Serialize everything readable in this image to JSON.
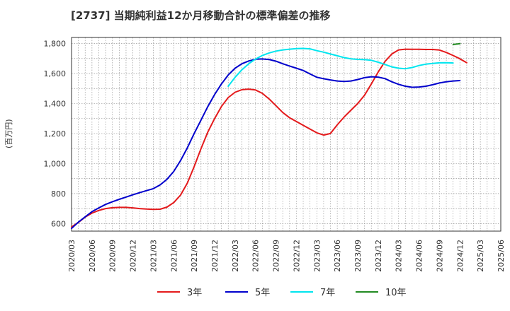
{
  "chart_data": {
    "type": "line",
    "title": "[2737]  当期純利益12か月移動合計の標準偏差の推移",
    "ylabel": "(百万円)",
    "xlabel": "",
    "ylim": [
      550,
      1840
    ],
    "yticks": [
      600,
      800,
      1000,
      1200,
      1400,
      1600,
      1800
    ],
    "ytick_labels": [
      "600",
      "800",
      "1,000",
      "1,200",
      "1,400",
      "1,600",
      "1,800"
    ],
    "xticks": [
      "2020/03",
      "2020/06",
      "2020/09",
      "2020/12",
      "2021/03",
      "2021/06",
      "2021/09",
      "2021/12",
      "2022/03",
      "2022/06",
      "2022/09",
      "2022/12",
      "2023/03",
      "2023/06",
      "2023/09",
      "2023/12",
      "2024/03",
      "2024/06",
      "2024/09",
      "2024/12",
      "2025/03",
      "2025/06"
    ],
    "x_start": "2020/03",
    "grid": true,
    "legend_position": "bottom",
    "series": [
      {
        "name": "3年",
        "color": "#e41a1c",
        "values": [
          578,
          608,
          643,
          670,
          688,
          700,
          706,
          708,
          708,
          705,
          700,
          697,
          695,
          696,
          710,
          740,
          790,
          870,
          980,
          1100,
          1210,
          1300,
          1380,
          1440,
          1475,
          1492,
          1496,
          1490,
          1468,
          1430,
          1385,
          1340,
          1305,
          1280,
          1255,
          1230,
          1205,
          1190,
          1200,
          1258,
          1310,
          1355,
          1400,
          1455,
          1530,
          1610,
          1680,
          1730,
          1757,
          1762,
          1761,
          1761,
          1760,
          1760,
          1756,
          1740,
          1720,
          1698,
          1672
        ]
      },
      {
        "name": "5年",
        "color": "#0000cc",
        "values": [
          568,
          610,
          645,
          680,
          705,
          728,
          746,
          762,
          777,
          792,
          806,
          820,
          833,
          858,
          895,
          948,
          1020,
          1105,
          1200,
          1290,
          1380,
          1460,
          1530,
          1590,
          1635,
          1665,
          1683,
          1695,
          1697,
          1693,
          1682,
          1665,
          1650,
          1635,
          1620,
          1597,
          1575,
          1565,
          1557,
          1550,
          1547,
          1550,
          1560,
          1572,
          1578,
          1576,
          1566,
          1545,
          1528,
          1515,
          1508,
          1510,
          1515,
          1525,
          1537,
          1545,
          1550,
          1553
        ]
      },
      {
        "name": "7年",
        "color": "#00e5ee",
        "values": [
          null,
          null,
          null,
          null,
          null,
          null,
          null,
          null,
          null,
          null,
          null,
          null,
          null,
          null,
          null,
          null,
          null,
          null,
          null,
          null,
          null,
          null,
          null,
          1515,
          1575,
          1625,
          1665,
          1696,
          1720,
          1737,
          1749,
          1757,
          1762,
          1766,
          1767,
          1764,
          1752,
          1742,
          1730,
          1718,
          1706,
          1698,
          1694,
          1692,
          1688,
          1675,
          1660,
          1644,
          1635,
          1632,
          1640,
          1653,
          1662,
          1667,
          1671,
          1672,
          1670
        ]
      },
      {
        "name": "10年",
        "color": "#228b22",
        "values": [
          null,
          null,
          null,
          null,
          null,
          null,
          null,
          null,
          null,
          null,
          null,
          null,
          null,
          null,
          null,
          null,
          null,
          null,
          null,
          null,
          null,
          null,
          null,
          null,
          null,
          null,
          null,
          null,
          null,
          null,
          null,
          null,
          null,
          null,
          null,
          null,
          null,
          null,
          null,
          null,
          null,
          null,
          null,
          null,
          null,
          null,
          null,
          null,
          null,
          null,
          null,
          null,
          null,
          null,
          null,
          null,
          1793,
          1799
        ]
      }
    ]
  }
}
